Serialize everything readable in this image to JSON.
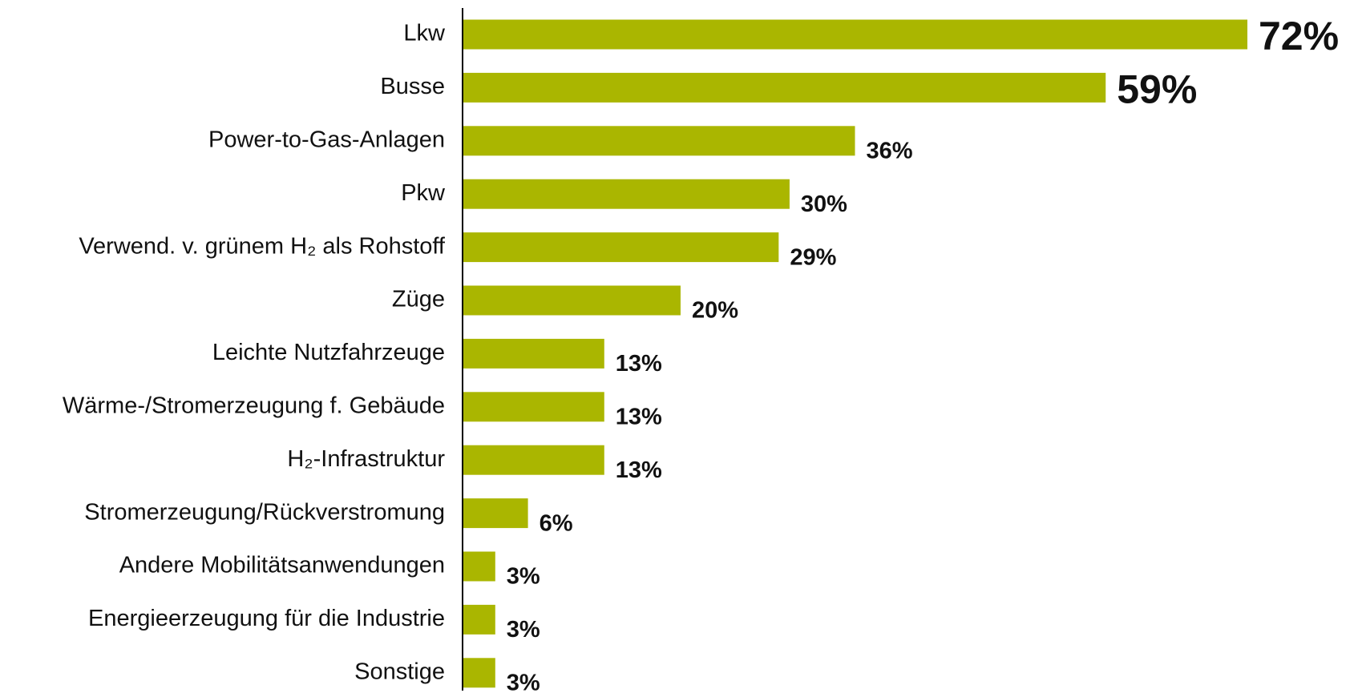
{
  "chart_data": {
    "type": "bar",
    "orientation": "horizontal",
    "categories": [
      "Lkw",
      "Busse",
      "Power-to-Gas-Anlagen",
      "Pkw",
      "Verwend. v. grünem H₂ als Rohstoff",
      "Züge",
      "Leichte Nutzfahrzeuge",
      "Wärme-/Stromerzeugung f. Gebäude",
      "H₂-Infrastruktur",
      "Stromerzeugung/Rückverstromung",
      "Andere Mobilitätsanwendungen",
      "Energieerzeugung für die Industrie",
      "Sonstige"
    ],
    "values": [
      72,
      59,
      36,
      30,
      29,
      20,
      13,
      13,
      13,
      6,
      3,
      3,
      3
    ],
    "value_labels": [
      "72%",
      "59%",
      "36%",
      "30%",
      "29%",
      "20%",
      "13%",
      "13%",
      "13%",
      "6%",
      "3%",
      "3%",
      "3%"
    ],
    "color": "#aab600"
  }
}
